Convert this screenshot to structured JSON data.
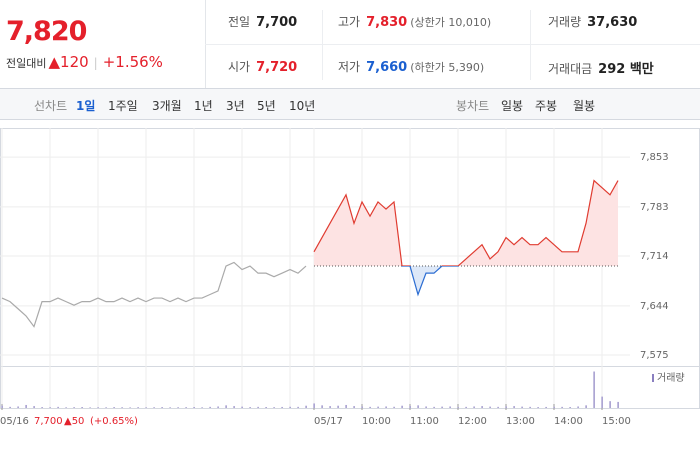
{
  "header": {
    "price": "7,820",
    "change_label": "전일대비",
    "change": "▲120",
    "change_pct": "+1.56%",
    "stats": [
      {
        "label": "전일",
        "value": "7,700"
      },
      {
        "label": "고가",
        "value": "7,830",
        "note": "(상한가 10,010)"
      },
      {
        "label": "거래량",
        "value": "37,630"
      },
      {
        "label": "시가",
        "value": "7,720"
      },
      {
        "label": "저가",
        "value": "7,660",
        "note": "(하한가 5,390)"
      },
      {
        "label": "거래대금",
        "value": "292 백만"
      }
    ]
  },
  "tabs": {
    "line_label": "선차트",
    "line": [
      "1일",
      "1주일",
      "3개월",
      "1년",
      "3년",
      "5년",
      "10년"
    ],
    "candle_label": "봉차트",
    "candle": [
      "일봉",
      "주봉",
      "월봉"
    ]
  },
  "footer": {
    "prev_close": "7,700",
    "prev_change": "▲50",
    "prev_pct": "(+0.65%)"
  },
  "chart_data": {
    "type": "line",
    "categories": [
      "05/16",
      null,
      null,
      null,
      null,
      null,
      null,
      null,
      null,
      null,
      null,
      null,
      null,
      null,
      null,
      null,
      null,
      null,
      null,
      null,
      null,
      null,
      null,
      null,
      null,
      null,
      null,
      null,
      null,
      null,
      null,
      null,
      null,
      null,
      null,
      null,
      null,
      null,
      null,
      "05/17",
      null,
      null,
      null,
      null,
      null,
      "10:00",
      null,
      null,
      null,
      null,
      null,
      "11:00",
      null,
      null,
      null,
      null,
      null,
      "12:00",
      null,
      null,
      null,
      null,
      null,
      "13:00",
      null,
      null,
      null,
      null,
      null,
      "14:00",
      null,
      null,
      null,
      null,
      null,
      "15:00",
      null,
      null
    ],
    "series": [
      {
        "color": "#aaaaaa",
        "values": [
          7655,
          7650,
          7640,
          7630,
          7615,
          7650,
          7650,
          7655,
          7650,
          7645,
          7650,
          7650,
          7655,
          7650,
          7650,
          7655,
          7650,
          7655,
          7650,
          7655,
          7655,
          7650,
          7655,
          7650,
          7655,
          7655,
          7660,
          7665,
          7700,
          7705,
          7695,
          7700,
          7690,
          7690,
          7685,
          7690,
          7695,
          7690,
          7700,
          null,
          null,
          null,
          null,
          null,
          null,
          null,
          null,
          null,
          null,
          null,
          null,
          null,
          null,
          null,
          null,
          null,
          null,
          null,
          null,
          null,
          null,
          null,
          null,
          null,
          null,
          null,
          null,
          null,
          null,
          null,
          null,
          null,
          null,
          null,
          null,
          null,
          null,
          null
        ]
      },
      {
        "color": "#e03c31",
        "below_color": "#2c6dd2",
        "fill": "#fde3e3",
        "below_fill": "#dde8f8",
        "values": [
          null,
          null,
          null,
          null,
          null,
          null,
          null,
          null,
          null,
          null,
          null,
          null,
          null,
          null,
          null,
          null,
          null,
          null,
          null,
          null,
          null,
          null,
          null,
          null,
          null,
          null,
          null,
          null,
          null,
          null,
          null,
          null,
          null,
          null,
          null,
          null,
          null,
          null,
          null,
          7720,
          7740,
          7760,
          7780,
          7800,
          7760,
          7790,
          7770,
          7790,
          7780,
          7790,
          7700,
          7700,
          7660,
          7690,
          7690,
          7700,
          7700,
          7700,
          7710,
          7720,
          7730,
          7710,
          7720,
          7740,
          7730,
          7740,
          7730,
          7730,
          7740,
          7730,
          7720,
          7720,
          7720,
          7760,
          7820,
          7810,
          7800,
          7820
        ]
      }
    ],
    "baseline": 7700,
    "ylim": [
      7561,
      7877
    ],
    "yticks": [
      {
        "value": 7575,
        "label": "7,575"
      },
      {
        "value": 7644,
        "label": "7,644"
      },
      {
        "value": 7714,
        "label": "7,714"
      },
      {
        "value": 7783,
        "label": "7,783"
      },
      {
        "value": 7853,
        "label": "7,853"
      }
    ],
    "grid": true,
    "volume": {
      "name": "거래량",
      "color": "#8a7fc0",
      "ylim": [
        0,
        5000
      ],
      "values": [
        300,
        150,
        200,
        400,
        250,
        120,
        100,
        150,
        90,
        110,
        130,
        80,
        100,
        90,
        120,
        100,
        80,
        110,
        90,
        100,
        120,
        90,
        100,
        110,
        130,
        90,
        150,
        200,
        350,
        250,
        180,
        120,
        150,
        130,
        110,
        140,
        160,
        150,
        300,
        600,
        350,
        250,
        300,
        400,
        250,
        200,
        150,
        180,
        200,
        160,
        300,
        250,
        350,
        200,
        150,
        180,
        200,
        120,
        150,
        200,
        250,
        180,
        150,
        200,
        250,
        180,
        150,
        120,
        140,
        160,
        150,
        130,
        200,
        350,
        4800,
        1500,
        900,
        800
      ]
    }
  }
}
